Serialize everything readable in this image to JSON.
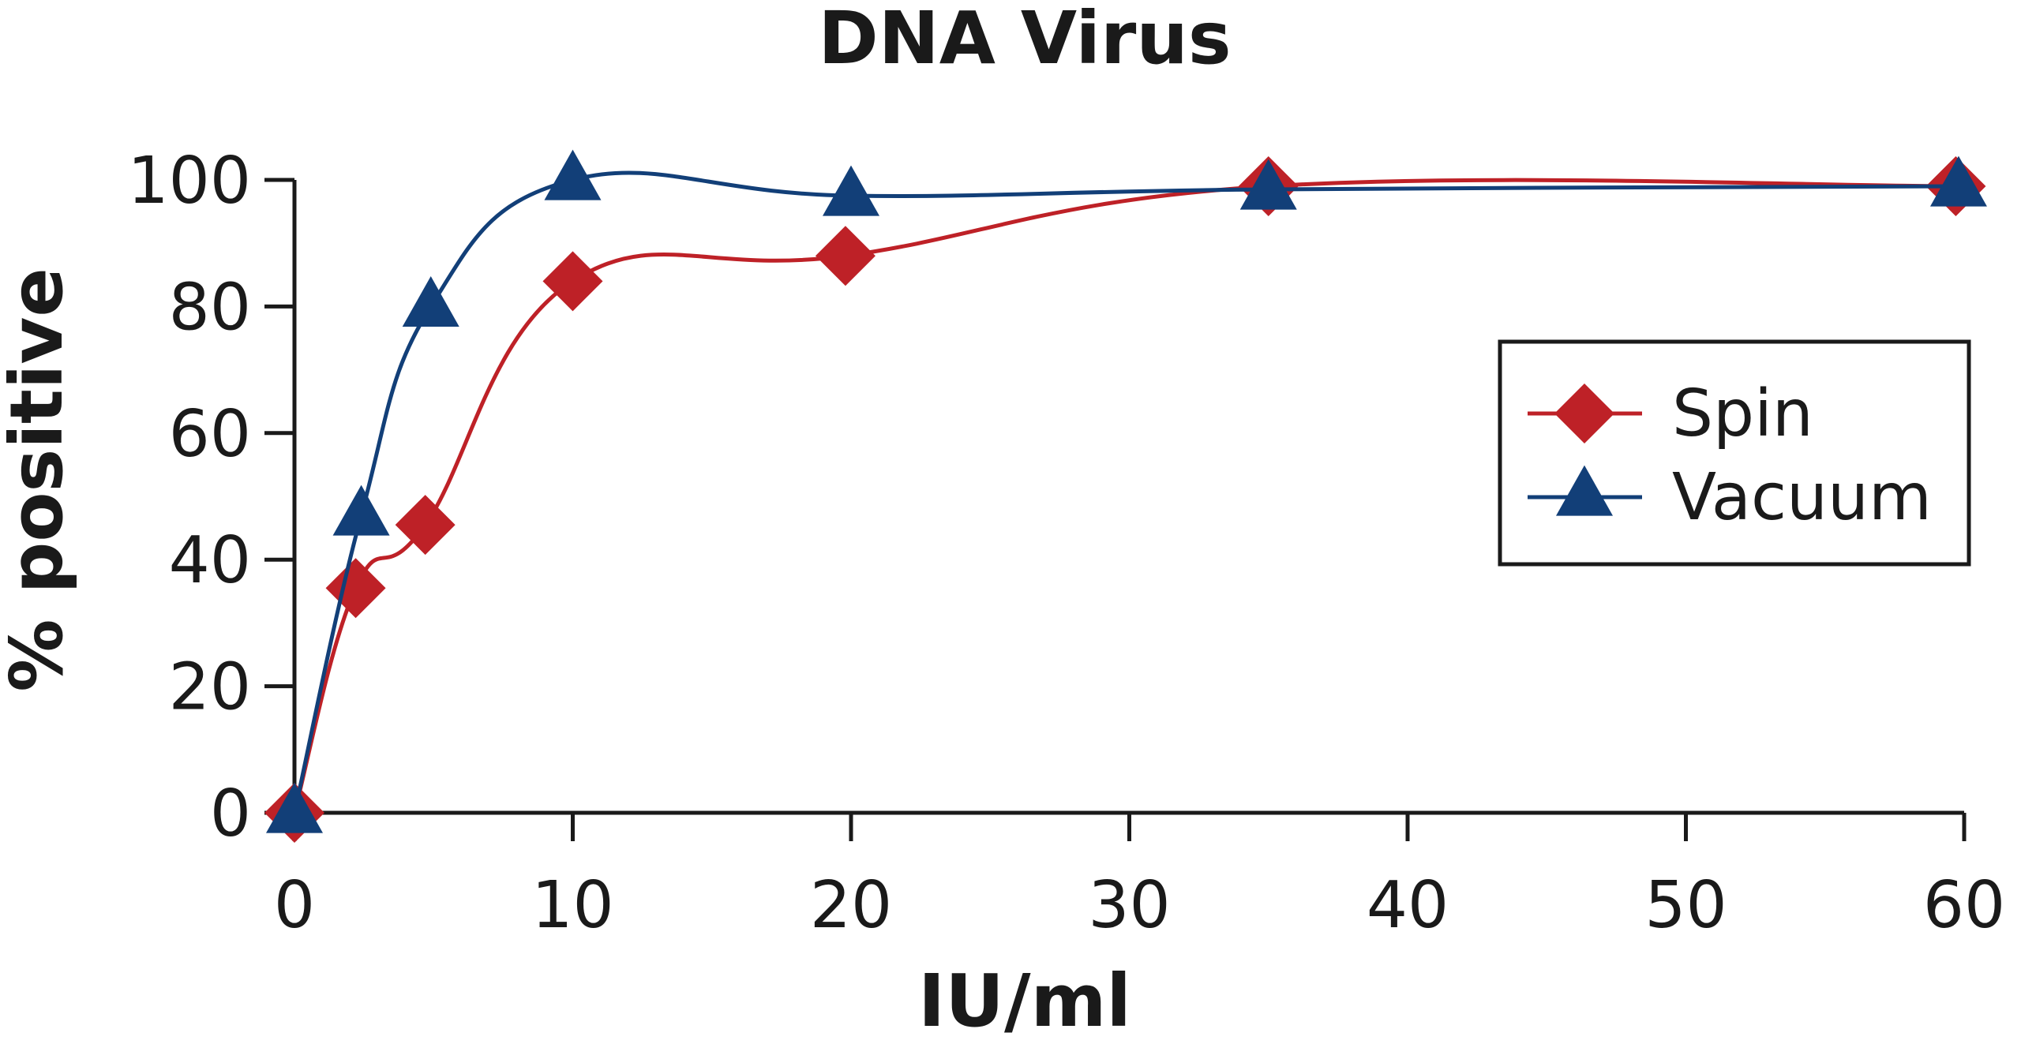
{
  "chart_data": {
    "type": "line",
    "title": "DNA Virus",
    "xlabel": "IU/ml",
    "ylabel": "% positive",
    "xlim": [
      0,
      60
    ],
    "ylim": [
      0,
      100
    ],
    "xticks": [
      0,
      10,
      20,
      30,
      40,
      50,
      60
    ],
    "yticks": [
      0,
      20,
      40,
      60,
      80,
      100
    ],
    "grid": false,
    "legend_position": "right",
    "series": [
      {
        "name": "Spin",
        "color": "#be2127",
        "marker": "diamond",
        "x": [
          0,
          2.2,
          4.7,
          10,
          19.8,
          35,
          59.7
        ],
        "y": [
          0,
          35.5,
          45.5,
          84,
          88,
          99,
          99
        ]
      },
      {
        "name": "Vacuum",
        "color": "#123f78",
        "marker": "triangle",
        "x": [
          0,
          2.4,
          4.9,
          10,
          20,
          35,
          59.8
        ],
        "y": [
          0,
          47,
          80,
          100,
          97.5,
          98.5,
          99
        ]
      }
    ]
  }
}
